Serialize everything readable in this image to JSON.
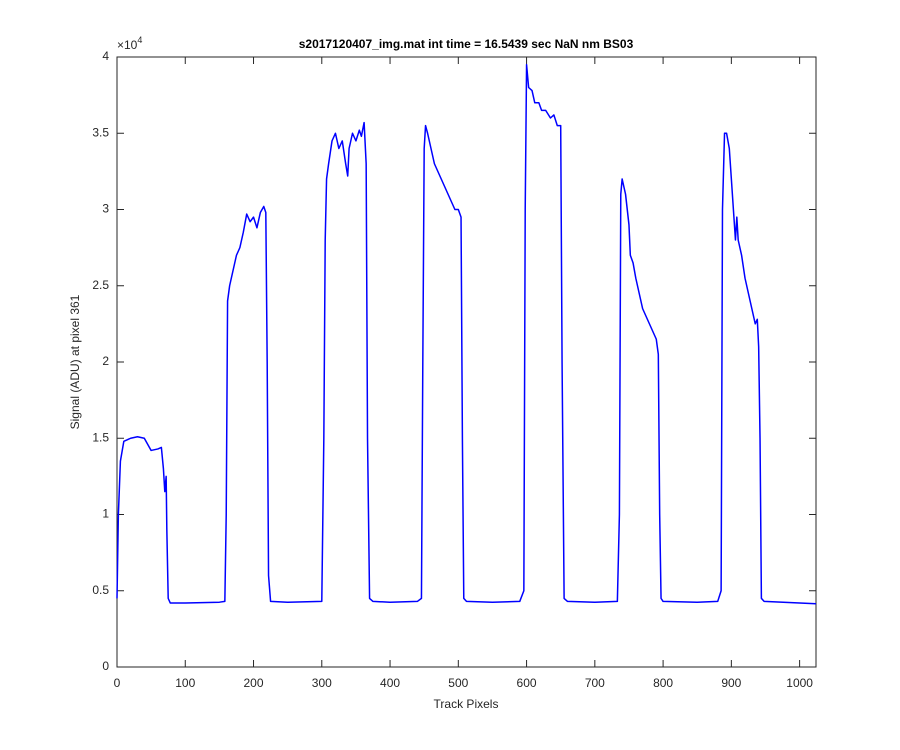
{
  "chart_data": {
    "type": "line",
    "title": "s2017120407_img.mat int time = 16.5439 sec  NaN nm BS03",
    "x_label": "Track Pixels",
    "y_label": "Signal (ADU) at pixel 361",
    "y_multiplier": {
      "base": "×10",
      "exponent": "4"
    },
    "xlim": [
      0,
      1024
    ],
    "ylim": [
      0,
      4
    ],
    "xticks": [
      0,
      100,
      200,
      300,
      400,
      500,
      600,
      700,
      800,
      900,
      1000
    ],
    "yticks": [
      0,
      0.5,
      1,
      1.5,
      2,
      2.5,
      3,
      3.5,
      4
    ],
    "grid": false,
    "series": [
      {
        "color": "#0000ff",
        "x": [
          0,
          2,
          5,
          10,
          20,
          30,
          40,
          45,
          50,
          60,
          65,
          68,
          70,
          72,
          73,
          75,
          78,
          100,
          150,
          158,
          160,
          162,
          165,
          170,
          175,
          180,
          185,
          190,
          195,
          200,
          205,
          210,
          215,
          218,
          220,
          222,
          225,
          250,
          300,
          303,
          305,
          307,
          310,
          315,
          320,
          325,
          330,
          335,
          338,
          340,
          345,
          350,
          355,
          358,
          362,
          365,
          367,
          370,
          375,
          400,
          440,
          446,
          448,
          450,
          452,
          455,
          460,
          465,
          470,
          475,
          480,
          485,
          490,
          495,
          500,
          504,
          506,
          508,
          512,
          550,
          590,
          596,
          598,
          600,
          603,
          608,
          612,
          618,
          622,
          628,
          635,
          640,
          645,
          650,
          652,
          655,
          660,
          700,
          733,
          736,
          738,
          740,
          745,
          750,
          752,
          756,
          760,
          765,
          770,
          775,
          780,
          785,
          790,
          793,
          795,
          797,
          800,
          850,
          880,
          885,
          887,
          890,
          893,
          897,
          900,
          903,
          906,
          908,
          910,
          915,
          920,
          925,
          930,
          935,
          938,
          940,
          942,
          944,
          948,
          1000,
          1024
        ],
        "values": [
          0.45,
          1.0,
          1.35,
          1.48,
          1.5,
          1.51,
          1.5,
          1.46,
          1.42,
          1.43,
          1.44,
          1.3,
          1.15,
          1.25,
          0.9,
          0.45,
          0.42,
          0.42,
          0.425,
          0.43,
          1.0,
          2.4,
          2.5,
          2.6,
          2.7,
          2.75,
          2.85,
          2.97,
          2.92,
          2.95,
          2.88,
          2.98,
          3.02,
          2.98,
          2.0,
          0.6,
          0.43,
          0.425,
          0.43,
          1.5,
          2.8,
          3.2,
          3.3,
          3.45,
          3.5,
          3.4,
          3.45,
          3.3,
          3.22,
          3.4,
          3.5,
          3.45,
          3.52,
          3.48,
          3.57,
          3.3,
          1.5,
          0.45,
          0.43,
          0.425,
          0.43,
          0.45,
          2.0,
          3.4,
          3.55,
          3.5,
          3.4,
          3.3,
          3.25,
          3.2,
          3.15,
          3.1,
          3.05,
          3.0,
          3.0,
          2.95,
          1.5,
          0.45,
          0.43,
          0.425,
          0.43,
          0.5,
          3.0,
          3.95,
          3.8,
          3.78,
          3.7,
          3.7,
          3.65,
          3.65,
          3.6,
          3.62,
          3.55,
          3.55,
          2.0,
          0.45,
          0.43,
          0.425,
          0.43,
          1.0,
          3.1,
          3.2,
          3.1,
          2.9,
          2.7,
          2.65,
          2.55,
          2.45,
          2.35,
          2.3,
          2.25,
          2.2,
          2.15,
          2.05,
          1.0,
          0.45,
          0.43,
          0.425,
          0.43,
          0.5,
          3.0,
          3.5,
          3.5,
          3.4,
          3.2,
          3.0,
          2.8,
          2.95,
          2.8,
          2.7,
          2.55,
          2.45,
          2.35,
          2.25,
          2.28,
          2.1,
          1.5,
          0.45,
          0.43,
          0.42,
          0.415
        ]
      }
    ]
  }
}
